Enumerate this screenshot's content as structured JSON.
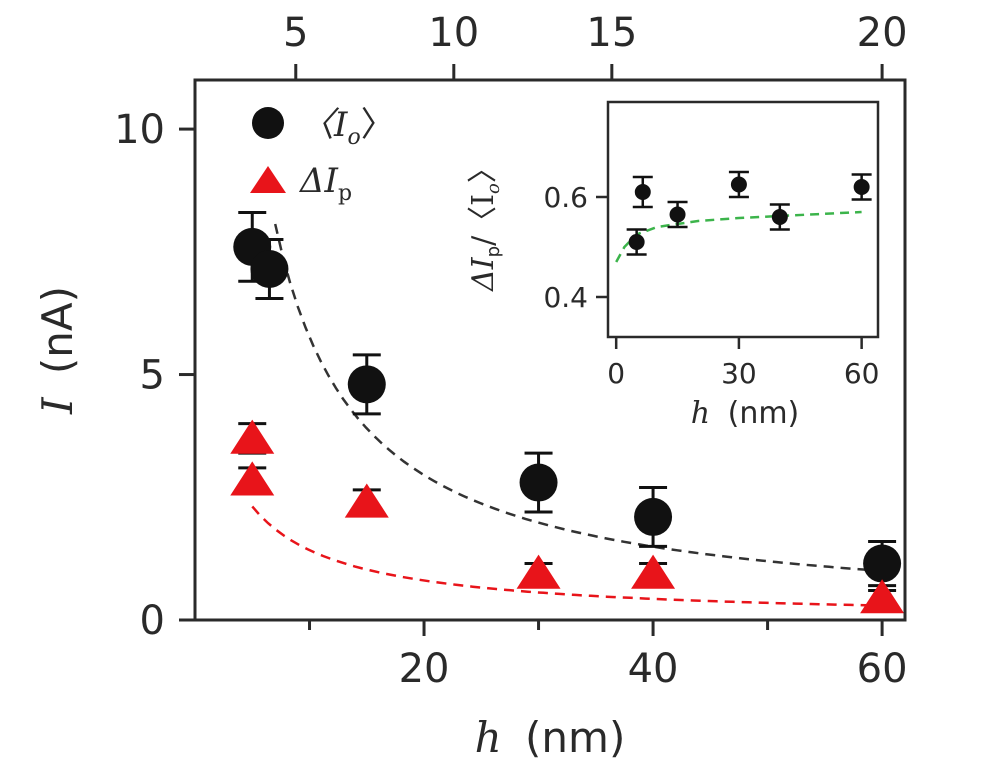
{
  "chart_data": [
    {
      "id": "main",
      "type": "scatter",
      "xlabel_var": "h",
      "xlabel_unit": "(nm)",
      "ylabel_var": "I",
      "ylabel_unit": "(nA)",
      "xlim": [
        0,
        62
      ],
      "ylim": [
        0,
        11
      ],
      "xticks": [
        20,
        40,
        60
      ],
      "xminorticks": [
        10,
        30,
        50
      ],
      "yticks": [
        0,
        5,
        10
      ],
      "top_axis": {
        "ticks": [
          {
            "value": 5,
            "label": "5"
          },
          {
            "value": 10,
            "label": "10"
          },
          {
            "value": 15,
            "label": "15"
          },
          {
            "value": 20,
            "label": "20"
          }
        ],
        "ticks_at_bottom_units": [
          8.8,
          22.6,
          36.4,
          60
        ]
      },
      "legend": {
        "position": "top-left",
        "entries": [
          {
            "marker": "circle",
            "color": "#111111",
            "label_main": "〈I",
            "label_sub": "o",
            "label_end": "〉"
          },
          {
            "marker": "triangle",
            "color": "#e8141a",
            "label_main": "ΔI",
            "label_sub": "p",
            "label_end": ""
          }
        ]
      },
      "series": [
        {
          "marker": "circle",
          "color": "#111111",
          "x": [
            5,
            6.5,
            15,
            30,
            40,
            60
          ],
          "y": [
            7.6,
            7.15,
            4.8,
            2.8,
            2.1,
            1.15
          ],
          "err": [
            0.7,
            0.6,
            0.6,
            0.6,
            0.6,
            0.45
          ]
        },
        {
          "marker": "triangle",
          "color": "#e8141a",
          "x": [
            5,
            5,
            15,
            30,
            40,
            60
          ],
          "y": [
            3.7,
            2.85,
            2.4,
            0.95,
            0.95,
            0.45
          ],
          "err": [
            0.3,
            0.25,
            0.25,
            0.2,
            0.2,
            0.15
          ]
        }
      ],
      "fits": [
        {
          "color": "#333333",
          "x_range": [
            7,
            60
          ],
          "a": 60.5,
          "b": 0.5
        },
        {
          "color": "#e8141a",
          "x_range": [
            5,
            60
          ],
          "a": 18.5,
          "b": 3.0
        }
      ]
    },
    {
      "id": "inset",
      "type": "scatter",
      "xlabel_var": "h",
      "xlabel_unit": "(nm)",
      "ylabel_main": "ΔI",
      "ylabel_sub": "p",
      "ylabel_mid": "/〈I",
      "ylabel_sub2": "o",
      "ylabel_end": "〉",
      "xlim": [
        -2,
        64
      ],
      "ylim": [
        0.32,
        0.79
      ],
      "xticks": [
        0,
        30,
        60
      ],
      "yticks": [
        0.4,
        0.6
      ],
      "ytick_labels": [
        "0.4",
        "0.6"
      ],
      "series": [
        {
          "marker": "circle",
          "color": "#111111",
          "x": [
            5,
            6.5,
            15,
            30,
            40,
            60
          ],
          "y": [
            0.51,
            0.61,
            0.565,
            0.625,
            0.56,
            0.62
          ],
          "err": [
            0.025,
            0.03,
            0.025,
            0.025,
            0.025,
            0.025
          ]
        }
      ],
      "fit": {
        "color": "#3cb44b",
        "x_range": [
          0,
          60
        ],
        "points_x": [
          0,
          2,
          5,
          10,
          20,
          30,
          40,
          50,
          60
        ],
        "points_y": [
          0.47,
          0.5,
          0.525,
          0.54,
          0.552,
          0.558,
          0.562,
          0.566,
          0.57
        ]
      }
    }
  ]
}
